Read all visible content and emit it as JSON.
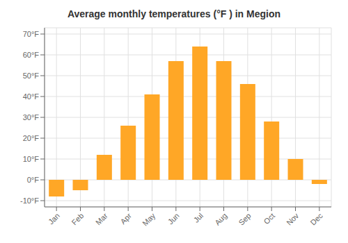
{
  "chart_data": {
    "type": "bar",
    "title": "Average monthly temperatures (°F ) in Megion",
    "categories": [
      "Jan",
      "Feb",
      "Mar",
      "Apr",
      "May",
      "Jun",
      "Jul",
      "Aug",
      "Sep",
      "Oct",
      "Nov",
      "Dec"
    ],
    "values": [
      -8,
      -5,
      12,
      26,
      41,
      57,
      64,
      57,
      46,
      28,
      10,
      -2
    ],
    "color": "#FFA726",
    "ylim": [
      -13,
      73
    ],
    "yticks": [
      {
        "value": -10,
        "label": "-10°F"
      },
      {
        "value": 0,
        "label": "0°F"
      },
      {
        "value": 10,
        "label": "10°F"
      },
      {
        "value": 20,
        "label": "20°F"
      },
      {
        "value": 30,
        "label": "30°F"
      },
      {
        "value": 40,
        "label": "40°F"
      },
      {
        "value": 50,
        "label": "50°F"
      },
      {
        "value": 60,
        "label": "60°F"
      },
      {
        "value": 70,
        "label": "70°F"
      }
    ],
    "grid": true
  }
}
